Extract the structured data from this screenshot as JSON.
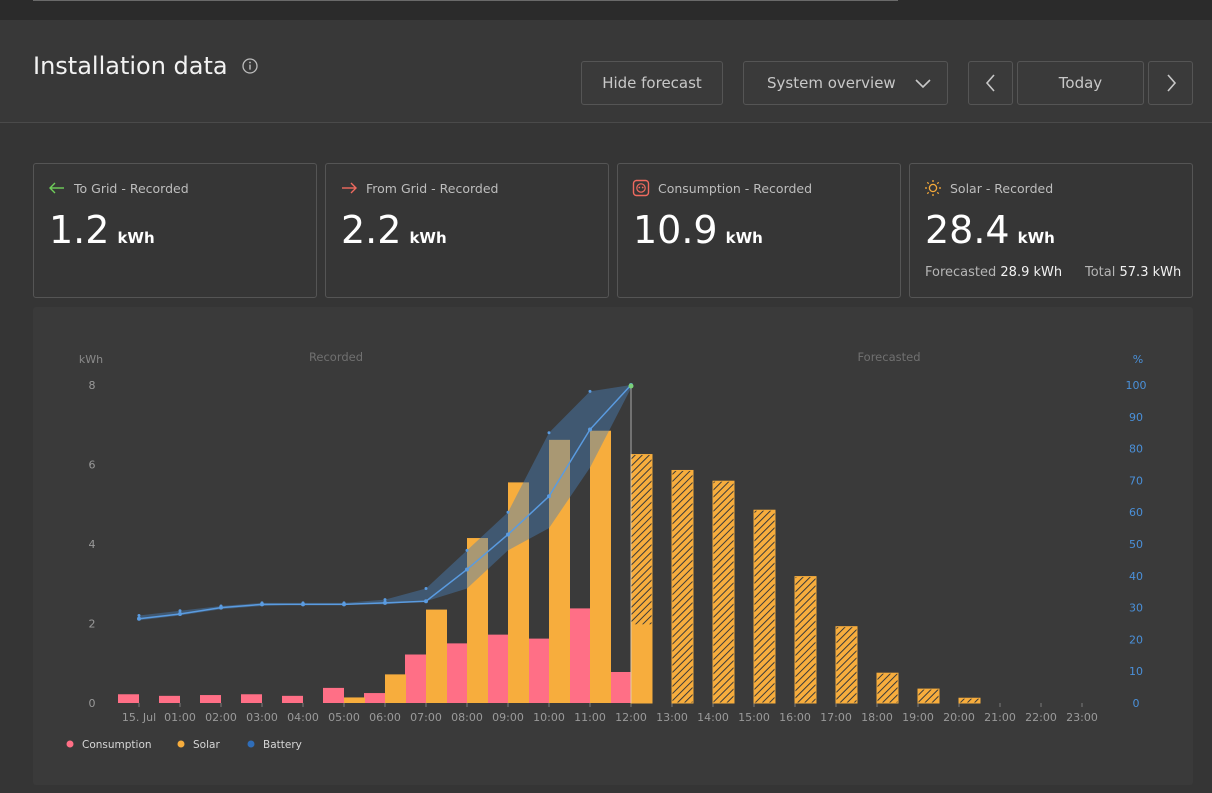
{
  "header": {
    "title": "Installation data",
    "hide_forecast_label": "Hide forecast",
    "view_select_value": "System overview",
    "today_label": "Today"
  },
  "cards": [
    {
      "label": "To Grid - Recorded",
      "value": "1.2",
      "unit": "kWh",
      "icon": "arrow-left-icon",
      "color": "#6fcf5a"
    },
    {
      "label": "From Grid - Recorded",
      "value": "2.2",
      "unit": "kWh",
      "icon": "arrow-right-icon",
      "color": "#f06a5f"
    },
    {
      "label": "Consumption - Recorded",
      "value": "10.9",
      "unit": "kWh",
      "icon": "plug-icon",
      "color": "#f06a5f"
    },
    {
      "label": "Solar - Recorded",
      "value": "28.4",
      "unit": "kWh",
      "icon": "sun-icon",
      "color": "#f4a93a",
      "forecast_label": "Forecasted",
      "forecast_value": "28.9 kWh",
      "total_label": "Total",
      "total_value": "57.3 kWh"
    }
  ],
  "chart_data": {
    "type": "bar",
    "section_labels": {
      "recorded": "Recorded",
      "forecasted": "Forecasted"
    },
    "ylabel_left": "kWh",
    "ylabel_right": "%",
    "ylim_left": [
      0,
      8
    ],
    "ylim_right": [
      0,
      100
    ],
    "yticks_left": [
      "0",
      "2",
      "4",
      "6",
      "8"
    ],
    "yticks_right": [
      "0",
      "10",
      "20",
      "30",
      "40",
      "50",
      "60",
      "70",
      "80",
      "90",
      "100"
    ],
    "categories": [
      "15. Jul",
      "01:00",
      "02:00",
      "03:00",
      "04:00",
      "05:00",
      "06:00",
      "07:00",
      "08:00",
      "09:00",
      "10:00",
      "11:00",
      "12:00",
      "13:00",
      "14:00",
      "15:00",
      "16:00",
      "17:00",
      "18:00",
      "19:00",
      "20:00",
      "21:00",
      "22:00",
      "23:00"
    ],
    "series": [
      {
        "name": "Consumption",
        "color": "#ff6f86",
        "values": [
          0.22,
          0.18,
          0.2,
          0.22,
          0.18,
          0.38,
          0.25,
          1.22,
          1.5,
          1.72,
          1.62,
          2.38,
          0.78,
          null,
          null,
          null,
          null,
          null,
          null,
          null,
          null,
          null,
          null,
          null
        ]
      },
      {
        "name": "Solar",
        "color": "#f7ad3d",
        "values": [
          0,
          0,
          0,
          0,
          0,
          0.14,
          0.72,
          2.35,
          4.15,
          5.55,
          6.62,
          6.85,
          1.98,
          null,
          null,
          null,
          null,
          null,
          null,
          null,
          null,
          null,
          null,
          null
        ]
      },
      {
        "name": "Solar forecast",
        "color": "#f7ad3d",
        "values": [
          null,
          null,
          null,
          null,
          null,
          null,
          null,
          null,
          null,
          null,
          null,
          null,
          6.25,
          5.85,
          5.58,
          4.85,
          3.18,
          1.92,
          0.75,
          0.35,
          0.12,
          0,
          0,
          0
        ]
      },
      {
        "name": "Battery",
        "color": "#3a86c8",
        "values": [
          26.5,
          28,
          30,
          31,
          31,
          31,
          31.5,
          32,
          42,
          53,
          65,
          86,
          100,
          null,
          null,
          null,
          null,
          null,
          null,
          null,
          null,
          null,
          null,
          null
        ],
        "band_max": [
          27.5,
          29,
          30.5,
          31.5,
          31.5,
          31.5,
          32.5,
          36,
          48,
          60,
          85,
          98,
          100
        ],
        "band_min": [
          26,
          27.5,
          29.5,
          30.5,
          31,
          31,
          31,
          32,
          36,
          48,
          55,
          74,
          99
        ]
      }
    ],
    "legend": [
      "Consumption",
      "Solar",
      "Battery"
    ]
  }
}
